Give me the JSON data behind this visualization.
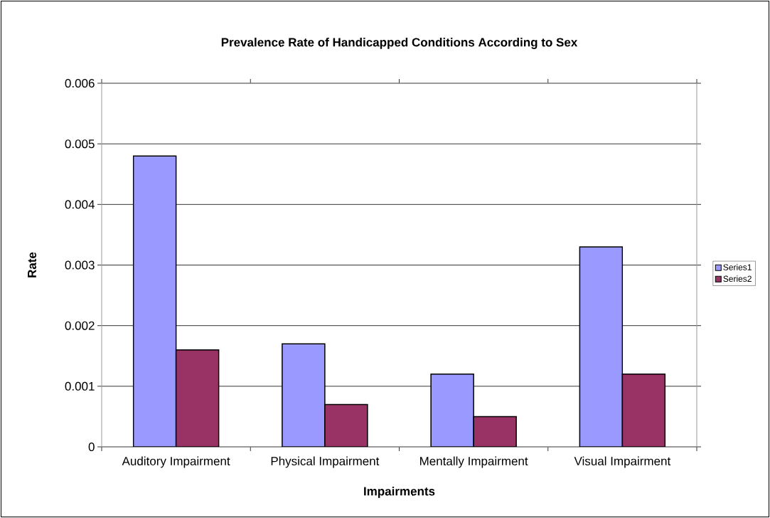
{
  "chart_data": {
    "type": "bar",
    "title": "Prevalence Rate of Handicapped Conditions According to Sex",
    "xlabel": "Impairments",
    "ylabel": "Rate",
    "categories": [
      "Auditory Impairment",
      "Physical Impairment",
      "Mentally Impairment",
      "Visual Impairment"
    ],
    "series": [
      {
        "name": "Series1",
        "color": "#9999ff",
        "values": [
          0.0048,
          0.0017,
          0.0012,
          0.0033
        ]
      },
      {
        "name": "Series2",
        "color": "#993366",
        "values": [
          0.0016,
          0.0007,
          0.0005,
          0.0012
        ]
      }
    ],
    "ylim": [
      0,
      0.006
    ],
    "yticks": [
      0,
      0.001,
      0.002,
      0.003,
      0.004,
      0.005,
      0.006
    ],
    "grid": "y",
    "legend": "right"
  }
}
